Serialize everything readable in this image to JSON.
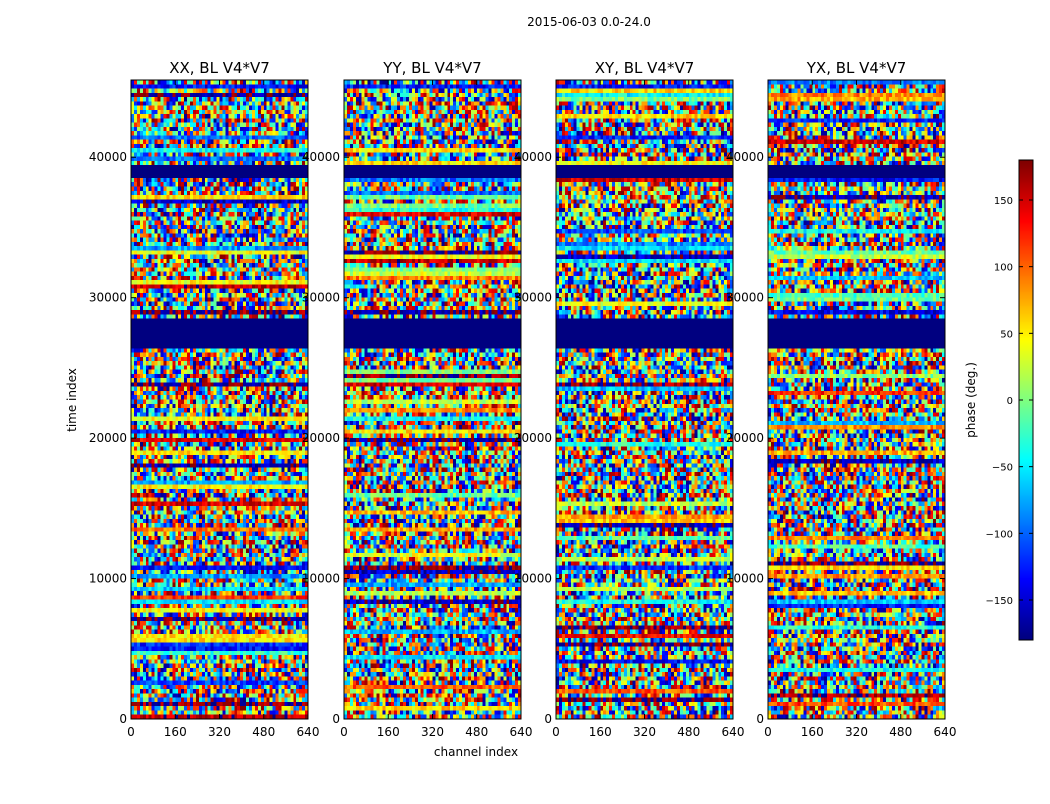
{
  "chart_data": {
    "type": "heatmap",
    "suptitle": "2015-06-03 0.0-24.0",
    "xlabel": "channel index",
    "ylabel": "time index",
    "xlim": [
      0,
      640
    ],
    "ylim": [
      0,
      45500
    ],
    "x_ticks": [
      "0",
      "160",
      "320",
      "480",
      "640"
    ],
    "y_ticks": [
      "0",
      "10000",
      "20000",
      "30000",
      "40000"
    ],
    "x_tick_values": [
      0,
      160,
      320,
      480,
      640
    ],
    "y_tick_values": [
      0,
      10000,
      20000,
      30000,
      40000
    ],
    "panels": [
      {
        "title": "XX, BL V4*V7",
        "seed": 11
      },
      {
        "title": "YY, BL V4*V7",
        "seed": 23
      },
      {
        "title": "XY, BL V4*V7",
        "seed": 37
      },
      {
        "title": "YX, BL V4*V7",
        "seed": 53
      }
    ],
    "colorbar": {
      "label": "phase (deg.)",
      "range": [
        -180,
        180
      ],
      "ticks": [
        "150",
        "100",
        "50",
        "0",
        "−50",
        "−100",
        "−150"
      ],
      "tick_values": [
        150,
        100,
        50,
        0,
        -50,
        -100,
        -150
      ],
      "colormap": "jet"
    },
    "flagged_time_ranges": [
      [
        26500,
        28500
      ],
      [
        38500,
        39500
      ]
    ],
    "colors": {
      "background": "#ffffff",
      "axis": "#000000",
      "flagged": "#00007f"
    }
  }
}
